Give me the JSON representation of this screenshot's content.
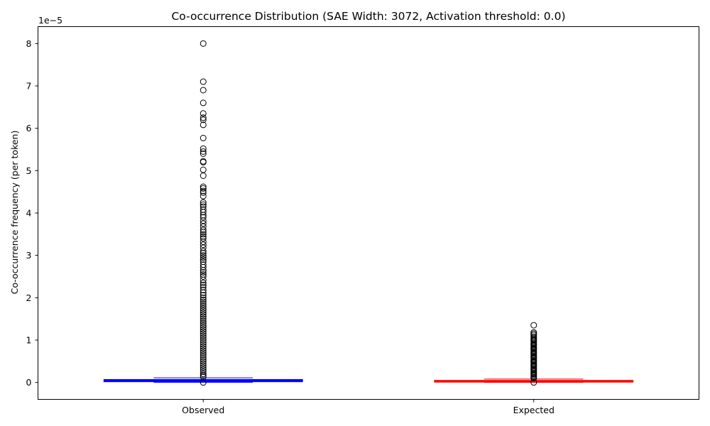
{
  "chart_data": {
    "type": "box",
    "title": "Co-occurrence Distribution (SAE Width: 3072, Activation threshold: 0.0)",
    "xlabel": "",
    "ylabel": "Co-occurrence frequency (per token)",
    "y_scale_label": "1e−5",
    "y_multiplier": 1e-05,
    "ylim": [
      -0.4,
      8.4
    ],
    "yticks": [
      0,
      1,
      2,
      3,
      4,
      5,
      6,
      7,
      8
    ],
    "ytick_labels": [
      "0",
      "1",
      "2",
      "3",
      "4",
      "5",
      "6",
      "7",
      "8"
    ],
    "grid": false,
    "categories": [
      "Observed",
      "Expected"
    ],
    "series": [
      {
        "category": "Observed",
        "color": "#0000ff",
        "whisker_low": 0.0,
        "q1": 0.02,
        "median": 0.045,
        "q3": 0.065,
        "whisker_high": 0.11,
        "outliers": [
          8.0,
          7.1,
          6.9,
          6.6,
          6.35,
          6.25,
          6.2,
          6.08,
          5.77,
          5.52,
          5.45,
          5.4,
          5.22,
          5.2,
          5.02,
          4.88,
          4.62,
          4.58,
          4.52,
          4.48,
          4.4,
          4.25,
          4.2,
          4.15,
          4.08,
          4.02,
          3.95,
          3.9,
          3.82,
          3.75,
          3.68,
          3.6,
          3.55,
          3.5,
          3.45,
          3.4,
          3.32,
          3.25,
          3.18,
          3.1,
          3.05,
          3.0,
          2.95,
          2.9,
          2.85,
          2.78,
          2.72,
          2.65,
          2.6,
          2.55,
          2.5,
          2.42,
          2.35,
          2.3,
          2.25,
          2.18,
          2.12,
          2.06,
          2.0,
          1.95,
          1.9,
          1.85,
          1.8,
          1.75,
          1.7,
          1.65,
          1.6,
          1.55,
          1.5,
          1.45,
          1.4,
          1.35,
          1.3,
          1.25,
          1.2,
          1.15,
          1.1,
          1.05,
          1.0,
          0.95,
          0.9,
          0.85,
          0.8,
          0.75,
          0.7,
          0.65,
          0.6,
          0.55,
          0.5,
          0.45,
          0.4,
          0.35,
          0.3,
          0.25,
          0.2,
          0.16,
          0.13,
          0.0
        ]
      },
      {
        "category": "Expected",
        "color": "#ff0000",
        "whisker_low": 0.0,
        "q1": 0.01,
        "median": 0.03,
        "q3": 0.045,
        "whisker_high": 0.08,
        "outliers": [
          1.35,
          1.18,
          1.15,
          1.12,
          1.08,
          1.05,
          1.02,
          1.0,
          0.98,
          0.95,
          0.92,
          0.9,
          0.88,
          0.85,
          0.82,
          0.8,
          0.78,
          0.75,
          0.72,
          0.7,
          0.68,
          0.65,
          0.62,
          0.6,
          0.58,
          0.55,
          0.52,
          0.5,
          0.48,
          0.45,
          0.42,
          0.4,
          0.38,
          0.35,
          0.32,
          0.3,
          0.28,
          0.25,
          0.22,
          0.2,
          0.18,
          0.15,
          0.12,
          0.1,
          0.0
        ]
      }
    ]
  }
}
